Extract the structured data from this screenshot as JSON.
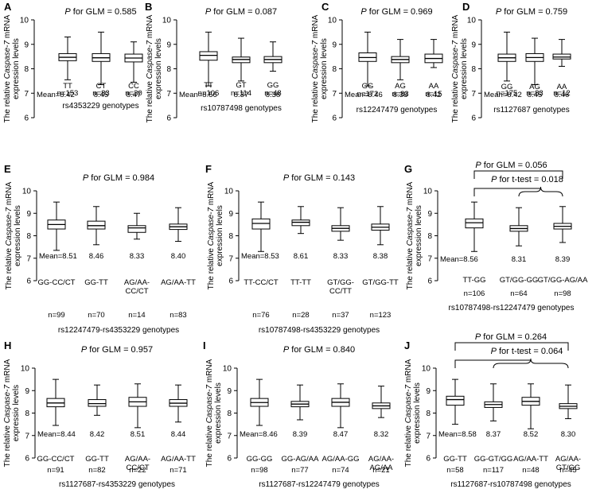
{
  "chart_data": [
    {
      "panel": "A",
      "type": "boxplot",
      "p_prefix": "P",
      "p_text": " for GLM = 0.585",
      "ylabel_pre": "The relative ",
      "ylabel_gene": "Caspase-7",
      "ylabel_post": " mRNA",
      "ylabel2": "expression levels",
      "ylim": [
        6,
        10
      ],
      "yticks": [
        "6",
        "7",
        "8",
        "9",
        "10"
      ],
      "mean_label": "Mean=",
      "xlabel": "rs4353229 genotypes",
      "groups": [
        {
          "label": "TT",
          "n": "n=153",
          "mean": "8.42",
          "min": 7.55,
          "q1": 8.33,
          "median": 8.47,
          "q3": 8.62,
          "max": 9.3
        },
        {
          "label": "CT",
          "n": "n=83",
          "mean": "8.45",
          "min": 7.35,
          "q1": 8.3,
          "median": 8.45,
          "q3": 8.62,
          "max": 9.5
        },
        {
          "label": "CC",
          "n": "n=30",
          "mean": "8.47",
          "min": 7.45,
          "q1": 8.28,
          "median": 8.44,
          "q3": 8.6,
          "max": 9.1
        }
      ]
    },
    {
      "panel": "B",
      "type": "boxplot",
      "p_prefix": "P",
      "p_text": " for GLM = 0.087",
      "ylabel_pre": "The relative ",
      "ylabel_gene": "Caspase-7",
      "ylabel_post": " mRNA",
      "ylabel2": "expression levels",
      "ylim": [
        6,
        10
      ],
      "yticks": [
        "6",
        "7",
        "8",
        "9",
        "10"
      ],
      "mean_label": "Mean=",
      "xlabel": "rs10787498 genotypes",
      "groups": [
        {
          "label": "TT",
          "n": "n=106",
          "mean": "8.56",
          "min": 7.3,
          "q1": 8.35,
          "median": 8.55,
          "q3": 8.7,
          "max": 9.5
        },
        {
          "label": "GT",
          "n": "n=114",
          "mean": "8.37",
          "min": 7.5,
          "q1": 8.25,
          "median": 8.38,
          "q3": 8.48,
          "max": 9.25
        },
        {
          "label": "GG",
          "n": "n=48",
          "mean": "8.38",
          "min": 7.9,
          "q1": 8.25,
          "median": 8.38,
          "q3": 8.5,
          "max": 9.1
        }
      ]
    },
    {
      "panel": "C",
      "type": "boxplot",
      "p_prefix": "P",
      "p_text": " for GLM = 0.969",
      "ylabel_pre": "The relative ",
      "ylabel_gene": "Caspase-7",
      "ylabel_post": " mRNA",
      "ylabel2": "expression levels",
      "ylim": [
        6,
        10
      ],
      "yticks": [
        "6",
        "7",
        "8",
        "9",
        "10"
      ],
      "mean_label": "Mean=",
      "xlabel": "rs12247479 genotypes",
      "groups": [
        {
          "label": "GG",
          "n": "n=172",
          "mean": "8.46",
          "min": 7.3,
          "q1": 8.3,
          "median": 8.46,
          "q3": 8.65,
          "max": 9.5
        },
        {
          "label": "AG",
          "n": "n=83",
          "mean": "8.38",
          "min": 7.55,
          "q1": 8.25,
          "median": 8.38,
          "q3": 8.5,
          "max": 9.2
        },
        {
          "label": "AA",
          "n": "n=15",
          "mean": "8.42",
          "min": 8.05,
          "q1": 8.25,
          "median": 8.42,
          "q3": 8.6,
          "max": 9.2
        }
      ]
    },
    {
      "panel": "D",
      "type": "boxplot",
      "p_prefix": "P",
      "p_text": " for GLM = 0.759",
      "ylabel_pre": "The relative ",
      "ylabel_gene": "Caspase-7",
      "ylabel_post": " mRNA",
      "ylabel2": "expression levels",
      "ylim": [
        6,
        10
      ],
      "yticks": [
        "6",
        "7",
        "8",
        "9",
        "10"
      ],
      "mean_label": "Mean=",
      "xlabel": "rs1127687 genotypes",
      "groups": [
        {
          "label": "GG",
          "n": "n=175",
          "mean": "8.42",
          "min": 7.5,
          "q1": 8.3,
          "median": 8.45,
          "q3": 8.6,
          "max": 9.5
        },
        {
          "label": "AG",
          "n": "n=83",
          "mean": "8.45",
          "min": 7.35,
          "q1": 8.3,
          "median": 8.46,
          "q3": 8.62,
          "max": 9.25
        },
        {
          "label": "AA",
          "n": "n=12",
          "mean": "8.46",
          "min": 8.1,
          "q1": 8.4,
          "median": 8.48,
          "q3": 8.6,
          "max": 9.2
        }
      ]
    },
    {
      "panel": "E",
      "type": "boxplot",
      "p_prefix": "P",
      "p_text": " for GLM = 0.984",
      "ylabel_pre": "The relative ",
      "ylabel_gene": "Caspase-7",
      "ylabel_post": " mRNA",
      "ylabel2": "expression levels",
      "ylim": [
        6,
        10
      ],
      "yticks": [
        "6",
        "7",
        "8",
        "9",
        "10"
      ],
      "mean_label": "Mean=",
      "xlabel": "rs12247479-rs4353229 genotypes",
      "groups": [
        {
          "label": "GG-CC/CT",
          "n": "n=99",
          "mean": "8.51",
          "min": 7.35,
          "q1": 8.3,
          "median": 8.5,
          "q3": 8.7,
          "max": 9.5
        },
        {
          "label": "GG-TT",
          "n": "n=70",
          "mean": "8.46",
          "min": 7.6,
          "q1": 8.3,
          "median": 8.45,
          "q3": 8.65,
          "max": 9.3
        },
        {
          "label": "AG/AA-\nCC/CT",
          "n": "n=14",
          "mean": "8.33",
          "min": 7.85,
          "q1": 8.15,
          "median": 8.35,
          "q3": 8.45,
          "max": 9.0
        },
        {
          "label": "AG/AA-TT",
          "n": "n=83",
          "mean": "8.40",
          "min": 7.75,
          "q1": 8.28,
          "median": 8.4,
          "q3": 8.52,
          "max": 9.25
        }
      ]
    },
    {
      "panel": "F",
      "type": "boxplot",
      "p_prefix": "P",
      "p_text": " for GLM = 0.143",
      "ylabel_pre": "The relative ",
      "ylabel_gene": "Caspase-7",
      "ylabel_post": " mRNA",
      "ylabel2": "expression levels",
      "ylim": [
        6,
        10
      ],
      "yticks": [
        "6",
        "7",
        "8",
        "9",
        "10"
      ],
      "mean_label": "Mean=",
      "xlabel": "rs10787498-rs4353229 genotypes",
      "groups": [
        {
          "label": "TT-CC/CT",
          "n": "n=76",
          "mean": "8.53",
          "min": 7.3,
          "q1": 8.3,
          "median": 8.55,
          "q3": 8.75,
          "max": 9.5
        },
        {
          "label": "TT-TT",
          "n": "n=28",
          "mean": "8.61",
          "min": 8.1,
          "q1": 8.45,
          "median": 8.6,
          "q3": 8.7,
          "max": 9.3
        },
        {
          "label": "GT/GG-\nCC/TT",
          "n": "n=37",
          "mean": "8.33",
          "min": 7.8,
          "q1": 8.2,
          "median": 8.33,
          "q3": 8.45,
          "max": 9.25
        },
        {
          "label": "GT/GG-TT",
          "n": "n=123",
          "mean": "8.38",
          "min": 7.6,
          "q1": 8.25,
          "median": 8.38,
          "q3": 8.52,
          "max": 9.3
        }
      ]
    },
    {
      "panel": "G",
      "type": "boxplot",
      "p_prefix": "P",
      "p_text": " for GLM = 0.056",
      "p2_prefix": "P",
      "p2_text": " for t-test = 0.018",
      "ylabel_pre": "The relative ",
      "ylabel_gene": "Caspase-7",
      "ylabel_post": " mRNA",
      "ylabel2": "expression levels",
      "ylim": [
        6,
        10
      ],
      "yticks": [
        "6",
        "7",
        "8",
        "9",
        "10"
      ],
      "mean_label": "Mean=",
      "xlabel": "rs10787498-rs12247479 genotypes",
      "groups": [
        {
          "label": "TT-GG",
          "n": "n=106",
          "mean": "8.56",
          "min": 7.3,
          "q1": 8.35,
          "median": 8.58,
          "q3": 8.75,
          "max": 9.5
        },
        {
          "label": "GT/GG-GG",
          "n": "n=64",
          "mean": "8.31",
          "min": 7.55,
          "q1": 8.2,
          "median": 8.32,
          "q3": 8.45,
          "max": 9.25
        },
        {
          "label": "GT/GG-AG/AA",
          "n": "n=98",
          "mean": "8.39",
          "min": 7.7,
          "q1": 8.3,
          "median": 8.42,
          "q3": 8.55,
          "max": 9.3
        }
      ]
    },
    {
      "panel": "H",
      "type": "boxplot",
      "p_prefix": "P",
      "p_text": " for GLM = 0.957",
      "ylabel_pre": "The relative ",
      "ylabel_gene": "Caspase-7",
      "ylabel_post": " mRNA",
      "ylabel2": "expressio levels",
      "ylim": [
        6,
        10
      ],
      "yticks": [
        "6",
        "7",
        "8",
        "9",
        "10"
      ],
      "mean_label": "Mean=",
      "xlabel": "rs1127687-rs4353229 genotypes",
      "groups": [
        {
          "label": "GG-CC/CT",
          "n": "n=91",
          "mean": "8.44",
          "min": 7.45,
          "q1": 8.28,
          "median": 8.45,
          "q3": 8.65,
          "max": 9.5
        },
        {
          "label": "GG-TT",
          "n": "n=82",
          "mean": "8.42",
          "min": 7.9,
          "q1": 8.3,
          "median": 8.42,
          "q3": 8.6,
          "max": 9.25
        },
        {
          "label": "AG/AA-\nCC/CT",
          "n": "n=22",
          "mean": "8.51",
          "min": 7.35,
          "q1": 8.3,
          "median": 8.5,
          "q3": 8.7,
          "max": 9.3
        },
        {
          "label": "AG/AA-TT",
          "n": "n=71",
          "mean": "8.44",
          "min": 7.6,
          "q1": 8.3,
          "median": 8.44,
          "q3": 8.6,
          "max": 9.25
        }
      ]
    },
    {
      "panel": "I",
      "type": "boxplot",
      "p_prefix": "P",
      "p_text": " for GLM = 0.840",
      "ylabel_pre": "The relative ",
      "ylabel_gene": "Caspase-7",
      "ylabel_post": " mRNA",
      "ylabel2": "expression levels",
      "ylim": [
        6,
        10
      ],
      "yticks": [
        "6",
        "7",
        "8",
        "9",
        "10"
      ],
      "mean_label": "Mean=",
      "xlabel": "rs1127687-rs12247479 genotypes",
      "groups": [
        {
          "label": "GG-GG",
          "n": "n=98",
          "mean": "8.46",
          "min": 7.45,
          "q1": 8.3,
          "median": 8.47,
          "q3": 8.65,
          "max": 9.5
        },
        {
          "label": "GG-AG/AA",
          "n": "n=77",
          "mean": "8.39",
          "min": 7.7,
          "q1": 8.28,
          "median": 8.4,
          "q3": 8.52,
          "max": 9.25
        },
        {
          "label": "AG/AA-GG",
          "n": "n=74",
          "mean": "8.47",
          "min": 7.35,
          "q1": 8.3,
          "median": 8.48,
          "q3": 8.65,
          "max": 9.3
        },
        {
          "label": "AG/AA-\nAG/AA",
          "n": "n=21",
          "mean": "8.32",
          "min": 7.8,
          "q1": 8.2,
          "median": 8.32,
          "q3": 8.45,
          "max": 9.2
        }
      ]
    },
    {
      "panel": "J",
      "type": "boxplot",
      "p_prefix": "P",
      "p_text": " for GLM = 0.264",
      "p2_prefix": "P",
      "p2_text": " for t-test = 0.064",
      "ylabel_pre": "The relative ",
      "ylabel_gene": "Caspase-7",
      "ylabel_post": " mRNA",
      "ylabel2": "expression levels",
      "ylim": [
        6,
        10
      ],
      "yticks": [
        "6",
        "7",
        "8",
        "9",
        "10"
      ],
      "mean_label": "Mean=",
      "xlabel": "rs1127687-rs10787498 genotypes",
      "groups": [
        {
          "label": "GG-TT",
          "n": "n=58",
          "mean": "8.58",
          "min": 7.5,
          "q1": 8.35,
          "median": 8.6,
          "q3": 8.75,
          "max": 9.5
        },
        {
          "label": "GG-GT/GG",
          "n": "n=117",
          "mean": "8.37",
          "min": 7.65,
          "q1": 8.25,
          "median": 8.38,
          "q3": 8.5,
          "max": 9.3
        },
        {
          "label": "AG/AA-TT",
          "n": "n=48",
          "mean": "8.52",
          "min": 7.3,
          "q1": 8.35,
          "median": 8.52,
          "q3": 8.7,
          "max": 9.3
        },
        {
          "label": "AG/AA-\nGT/GG",
          "n": "n=45",
          "mean": "8.30",
          "min": 7.75,
          "q1": 8.2,
          "median": 8.3,
          "q3": 8.42,
          "max": 9.25
        }
      ]
    }
  ]
}
